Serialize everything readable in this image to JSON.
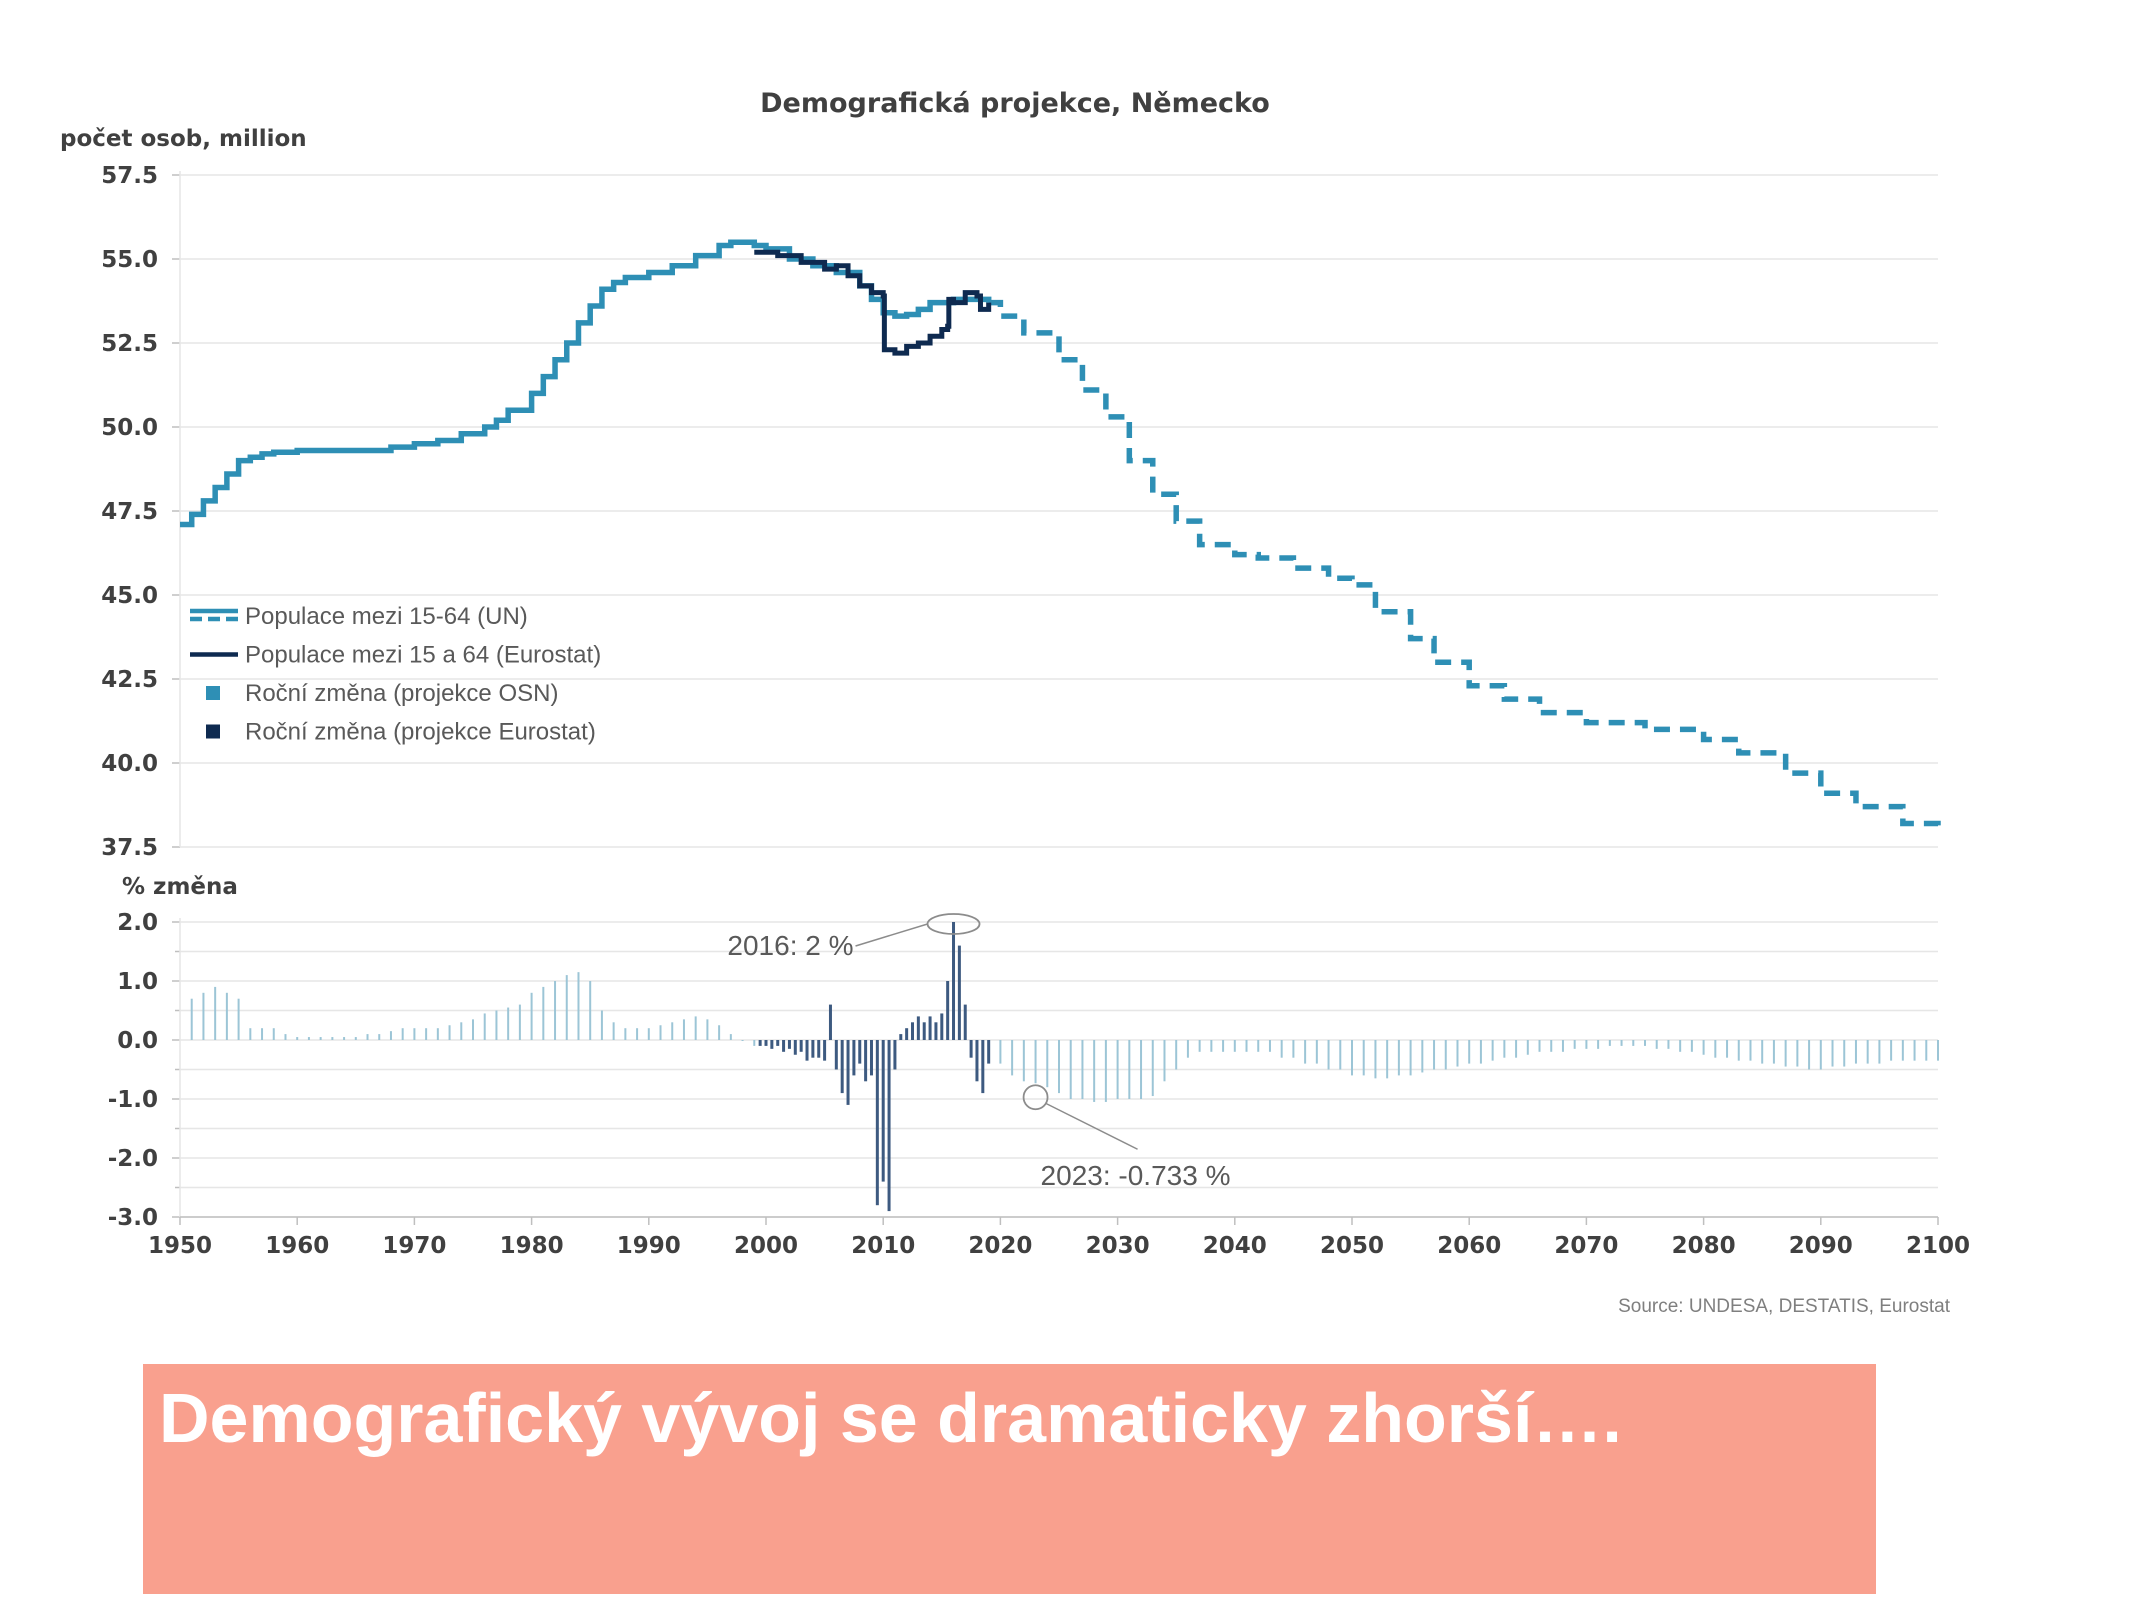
{
  "chart_data": [
    {
      "type": "line",
      "title": "Demografická projekce, Německo",
      "ylabel": "počet osob, million",
      "xlabel": "",
      "xlim": [
        1950,
        2100
      ],
      "ylim": [
        37.5,
        57.5
      ],
      "yticks": [
        "57.5",
        "55.0",
        "52.5",
        "50.0",
        "47.5",
        "45.0",
        "42.5",
        "40.0",
        "37.5"
      ],
      "grid": true,
      "legend_position": "left-middle",
      "series": [
        {
          "name": "Populace mezi 15-64 (UN)",
          "color": "#2e8fb5",
          "style": "solid",
          "points": [
            [
              1950,
              47.1
            ],
            [
              1951,
              47.4
            ],
            [
              1952,
              47.8
            ],
            [
              1953,
              48.2
            ],
            [
              1954,
              48.6
            ],
            [
              1955,
              49.0
            ],
            [
              1956,
              49.1
            ],
            [
              1957,
              49.2
            ],
            [
              1958,
              49.25
            ],
            [
              1960,
              49.3
            ],
            [
              1962,
              49.3
            ],
            [
              1964,
              49.3
            ],
            [
              1966,
              49.3
            ],
            [
              1968,
              49.4
            ],
            [
              1970,
              49.5
            ],
            [
              1972,
              49.6
            ],
            [
              1974,
              49.8
            ],
            [
              1976,
              50.0
            ],
            [
              1977,
              50.2
            ],
            [
              1978,
              50.5
            ],
            [
              1980,
              51.0
            ],
            [
              1981,
              51.5
            ],
            [
              1982,
              52.0
            ],
            [
              1983,
              52.5
            ],
            [
              1984,
              53.1
            ],
            [
              1985,
              53.6
            ],
            [
              1986,
              54.1
            ],
            [
              1987,
              54.3
            ],
            [
              1988,
              54.45
            ],
            [
              1990,
              54.6
            ],
            [
              1992,
              54.8
            ],
            [
              1994,
              55.1
            ],
            [
              1996,
              55.4
            ],
            [
              1997,
              55.5
            ],
            [
              1998,
              55.5
            ],
            [
              1999,
              55.4
            ],
            [
              2000,
              55.3
            ],
            [
              2002,
              55.0
            ],
            [
              2004,
              54.8
            ],
            [
              2006,
              54.6
            ],
            [
              2008,
              54.2
            ],
            [
              2009,
              53.8
            ],
            [
              2010,
              53.4
            ],
            [
              2011,
              53.3
            ],
            [
              2012,
              53.35
            ],
            [
              2013,
              53.5
            ],
            [
              2014,
              53.7
            ],
            [
              2016,
              53.8
            ],
            [
              2018,
              53.8
            ],
            [
              2019,
              53.7
            ]
          ]
        },
        {
          "name": "Populace mezi 15-64 (UN)",
          "color": "#2e8fb5",
          "style": "dashed",
          "points": [
            [
              2019,
              53.7
            ],
            [
              2020,
              53.3
            ],
            [
              2022,
              52.8
            ],
            [
              2025,
              52.0
            ],
            [
              2027,
              51.1
            ],
            [
              2029,
              50.3
            ],
            [
              2031,
              49.0
            ],
            [
              2033,
              48.0
            ],
            [
              2035,
              47.2
            ],
            [
              2037,
              46.5
            ],
            [
              2040,
              46.2
            ],
            [
              2042,
              46.1
            ],
            [
              2045,
              45.8
            ],
            [
              2048,
              45.5
            ],
            [
              2050,
              45.3
            ],
            [
              2052,
              44.5
            ],
            [
              2055,
              43.7
            ],
            [
              2057,
              43.0
            ],
            [
              2060,
              42.3
            ],
            [
              2063,
              41.9
            ],
            [
              2066,
              41.5
            ],
            [
              2070,
              41.2
            ],
            [
              2075,
              41.0
            ],
            [
              2080,
              40.7
            ],
            [
              2083,
              40.3
            ],
            [
              2087,
              39.7
            ],
            [
              2090,
              39.1
            ],
            [
              2093,
              38.7
            ],
            [
              2097,
              38.2
            ],
            [
              2100,
              37.9
            ]
          ]
        },
        {
          "name": "Populace mezi 15 a 64 (Eurostat)",
          "color": "#0e2a50",
          "style": "solid",
          "points": [
            [
              1999,
              55.2
            ],
            [
              2001,
              55.1
            ],
            [
              2003,
              54.9
            ],
            [
              2005,
              54.7
            ],
            [
              2006,
              54.8
            ],
            [
              2007,
              54.5
            ],
            [
              2008,
              54.2
            ],
            [
              2009,
              54.0
            ],
            [
              2010,
              53.9
            ],
            [
              2010.1,
              52.3
            ],
            [
              2011,
              52.2
            ],
            [
              2012,
              52.4
            ],
            [
              2013,
              52.5
            ],
            [
              2014,
              52.7
            ],
            [
              2015,
              52.9
            ],
            [
              2015.5,
              53.0
            ],
            [
              2015.6,
              53.8
            ],
            [
              2016,
              53.7
            ],
            [
              2017,
              54.0
            ],
            [
              2018,
              53.9
            ],
            [
              2018.3,
              53.5
            ],
            [
              2019,
              53.7
            ]
          ]
        }
      ],
      "legend": [
        {
          "label": "Populace mezi 15-64 (UN)",
          "marker": "line-dashed",
          "color": "#2e8fb5"
        },
        {
          "label": "Populace mezi 15 a 64 (Eurostat)",
          "marker": "line",
          "color": "#0e2a50"
        },
        {
          "label": "Roční změna (projekce OSN)",
          "marker": "square",
          "color": "#2e8fb5"
        },
        {
          "label": "Roční změna (projekce Eurostat)",
          "marker": "square",
          "color": "#0e2a50"
        }
      ]
    },
    {
      "type": "bar",
      "ylabel": "% změna",
      "xlim": [
        1950,
        2100
      ],
      "ylim": [
        -3.0,
        2.0
      ],
      "yticks": [
        "2.0",
        "1.0",
        "0.0",
        "-1.0",
        "-2.0",
        "-3.0"
      ],
      "xticks": [
        "1950",
        "1960",
        "1970",
        "1980",
        "1990",
        "2000",
        "2010",
        "2020",
        "2030",
        "2040",
        "2050",
        "2060",
        "2070",
        "2080",
        "2090",
        "2100"
      ],
      "grid": true,
      "series": [
        {
          "name": "Roční změna (projekce OSN)",
          "color": "#9cc5d6",
          "x": [
            1951,
            1952,
            1953,
            1954,
            1955,
            1956,
            1957,
            1958,
            1959,
            1960,
            1961,
            1962,
            1963,
            1964,
            1965,
            1966,
            1967,
            1968,
            1969,
            1970,
            1971,
            1972,
            1973,
            1974,
            1975,
            1976,
            1977,
            1978,
            1979,
            1980,
            1981,
            1982,
            1983,
            1984,
            1985,
            1986,
            1987,
            1988,
            1989,
            1990,
            1991,
            1992,
            1993,
            1994,
            1995,
            1996,
            1997,
            1998,
            1999,
            2020,
            2021,
            2022,
            2023,
            2024,
            2025,
            2026,
            2027,
            2028,
            2029,
            2030,
            2031,
            2032,
            2033,
            2034,
            2035,
            2036,
            2037,
            2038,
            2039,
            2040,
            2041,
            2042,
            2043,
            2044,
            2045,
            2046,
            2047,
            2048,
            2049,
            2050,
            2051,
            2052,
            2053,
            2054,
            2055,
            2056,
            2057,
            2058,
            2059,
            2060,
            2061,
            2062,
            2063,
            2064,
            2065,
            2066,
            2067,
            2068,
            2069,
            2070,
            2071,
            2072,
            2073,
            2074,
            2075,
            2076,
            2077,
            2078,
            2079,
            2080,
            2081,
            2082,
            2083,
            2084,
            2085,
            2086,
            2087,
            2088,
            2089,
            2090,
            2091,
            2092,
            2093,
            2094,
            2095,
            2096,
            2097,
            2098,
            2099,
            2100
          ],
          "values": [
            0.7,
            0.8,
            0.9,
            0.8,
            0.7,
            0.2,
            0.2,
            0.2,
            0.1,
            0.05,
            0.05,
            0.05,
            0.05,
            0.05,
            0.05,
            0.1,
            0.1,
            0.15,
            0.2,
            0.2,
            0.2,
            0.2,
            0.25,
            0.3,
            0.35,
            0.45,
            0.5,
            0.55,
            0.6,
            0.8,
            0.9,
            1.0,
            1.1,
            1.15,
            1.0,
            0.5,
            0.3,
            0.2,
            0.2,
            0.2,
            0.25,
            0.3,
            0.35,
            0.4,
            0.35,
            0.25,
            0.1,
            0.0,
            -0.1,
            -0.4,
            -0.6,
            -0.7,
            -0.733,
            -0.8,
            -0.9,
            -1.0,
            -1.0,
            -1.05,
            -1.05,
            -1.0,
            -1.0,
            -1.0,
            -0.95,
            -0.7,
            -0.5,
            -0.3,
            -0.2,
            -0.2,
            -0.2,
            -0.2,
            -0.2,
            -0.2,
            -0.2,
            -0.3,
            -0.3,
            -0.4,
            -0.4,
            -0.5,
            -0.5,
            -0.6,
            -0.6,
            -0.65,
            -0.65,
            -0.6,
            -0.6,
            -0.55,
            -0.5,
            -0.5,
            -0.45,
            -0.4,
            -0.4,
            -0.35,
            -0.3,
            -0.3,
            -0.25,
            -0.2,
            -0.2,
            -0.2,
            -0.15,
            -0.15,
            -0.15,
            -0.1,
            -0.1,
            -0.1,
            -0.1,
            -0.15,
            -0.15,
            -0.2,
            -0.2,
            -0.25,
            -0.3,
            -0.3,
            -0.35,
            -0.35,
            -0.4,
            -0.4,
            -0.45,
            -0.45,
            -0.5,
            -0.5,
            -0.45,
            -0.45,
            -0.4,
            -0.4,
            -0.4,
            -0.35,
            -0.35,
            -0.35,
            -0.35,
            -0.35
          ]
        },
        {
          "name": "Roční změna (projekce Eurostat)",
          "color": "#3d5a80",
          "x": [
            1999.5,
            2000,
            2000.5,
            2001,
            2001.5,
            2002,
            2002.5,
            2003,
            2003.5,
            2004,
            2004.5,
            2005,
            2005.5,
            2006,
            2006.5,
            2007,
            2007.5,
            2008,
            2008.5,
            2009,
            2009.5,
            2010,
            2010.5,
            2011,
            2011.5,
            2012,
            2012.5,
            2013,
            2013.5,
            2014,
            2014.5,
            2015,
            2015.5,
            2016,
            2016.5,
            2017,
            2017.5,
            2018,
            2018.5,
            2019
          ],
          "values": [
            -0.1,
            -0.1,
            -0.15,
            -0.1,
            -0.2,
            -0.15,
            -0.25,
            -0.2,
            -0.35,
            -0.3,
            -0.3,
            -0.35,
            0.6,
            -0.5,
            -0.9,
            -1.1,
            -0.6,
            -0.4,
            -0.7,
            -0.6,
            -2.8,
            -2.4,
            -2.9,
            -0.5,
            0.1,
            0.2,
            0.3,
            0.4,
            0.3,
            0.4,
            0.3,
            0.45,
            1.0,
            2.0,
            1.6,
            0.6,
            -0.3,
            -0.7,
            -0.9,
            -0.4
          ]
        }
      ],
      "annotations": [
        {
          "label": "2016: 2 %",
          "x": 2016,
          "y": 2.0
        },
        {
          "label": "2023: -0.733 %",
          "x": 2023,
          "y": -0.733
        }
      ]
    }
  ],
  "source": "Source: UNDESA, DESTATIS, Eurostat",
  "banner": {
    "text": "Demografický vývoj se dramaticky zhorší…."
  }
}
